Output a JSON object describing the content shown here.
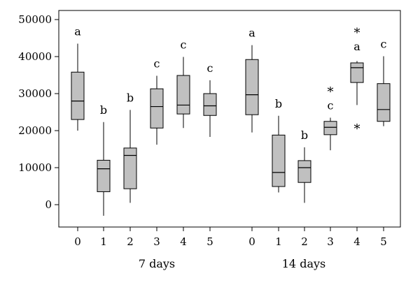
{
  "chart_data": {
    "type": "box",
    "title": "",
    "xlabel": "",
    "ylabel": "",
    "ylim": [
      -6000,
      52000
    ],
    "y_ticks": [
      "50000",
      "40000",
      "30000",
      "20000",
      "10000",
      "0"
    ],
    "y_tick_values": [
      50000,
      40000,
      30000,
      20000,
      10000,
      0
    ],
    "groups": [
      {
        "label": "7 days",
        "boxes": [
          {
            "category": "0",
            "min": 20000,
            "q1": 23000,
            "median": 28000,
            "q3": 35800,
            "max": 43500,
            "letter": "a",
            "outliers": []
          },
          {
            "category": "1",
            "min": -3000,
            "q1": 3500,
            "median": 9700,
            "q3": 12000,
            "max": 22300,
            "letter": "b",
            "outliers": []
          },
          {
            "category": "2",
            "min": 500,
            "q1": 4300,
            "median": 13300,
            "q3": 15300,
            "max": 25600,
            "letter": "b",
            "outliers": []
          },
          {
            "category": "3",
            "min": 16200,
            "q1": 20700,
            "median": 26500,
            "q3": 31300,
            "max": 34800,
            "letter": "c",
            "outliers": []
          },
          {
            "category": "4",
            "min": 20700,
            "q1": 24500,
            "median": 26900,
            "q3": 34900,
            "max": 39900,
            "letter": "c",
            "outliers": []
          },
          {
            "category": "5",
            "min": 18300,
            "q1": 24100,
            "median": 26700,
            "q3": 30000,
            "max": 33600,
            "letter": "c",
            "outliers": []
          }
        ]
      },
      {
        "label": "14 days",
        "boxes": [
          {
            "category": "0",
            "min": 19500,
            "q1": 24300,
            "median": 29700,
            "q3": 39200,
            "max": 43100,
            "letter": "a",
            "outliers": []
          },
          {
            "category": "1",
            "min": 3300,
            "q1": 4900,
            "median": 8700,
            "q3": 18800,
            "max": 24000,
            "letter": "b",
            "outliers": []
          },
          {
            "category": "2",
            "min": 500,
            "q1": 6000,
            "median": 10000,
            "q3": 11900,
            "max": 15500,
            "letter": "b",
            "outliers": []
          },
          {
            "category": "3",
            "min": 14700,
            "q1": 18900,
            "median": 20900,
            "q3": 22500,
            "max": 23500,
            "letter": "c",
            "outliers": [
              31000
            ]
          },
          {
            "category": "4",
            "min": 26900,
            "q1": 33000,
            "median": 37000,
            "q3": 38300,
            "max": 38800,
            "letter": "a",
            "outliers": [
              47000,
              21000
            ]
          },
          {
            "category": "5",
            "min": 21200,
            "q1": 22500,
            "median": 25700,
            "q3": 32700,
            "max": 40100,
            "letter": "c",
            "outliers": []
          }
        ]
      }
    ]
  },
  "colors": {
    "box_fill": "#c0c0c0",
    "stroke": "#000000",
    "background": "#ffffff"
  }
}
